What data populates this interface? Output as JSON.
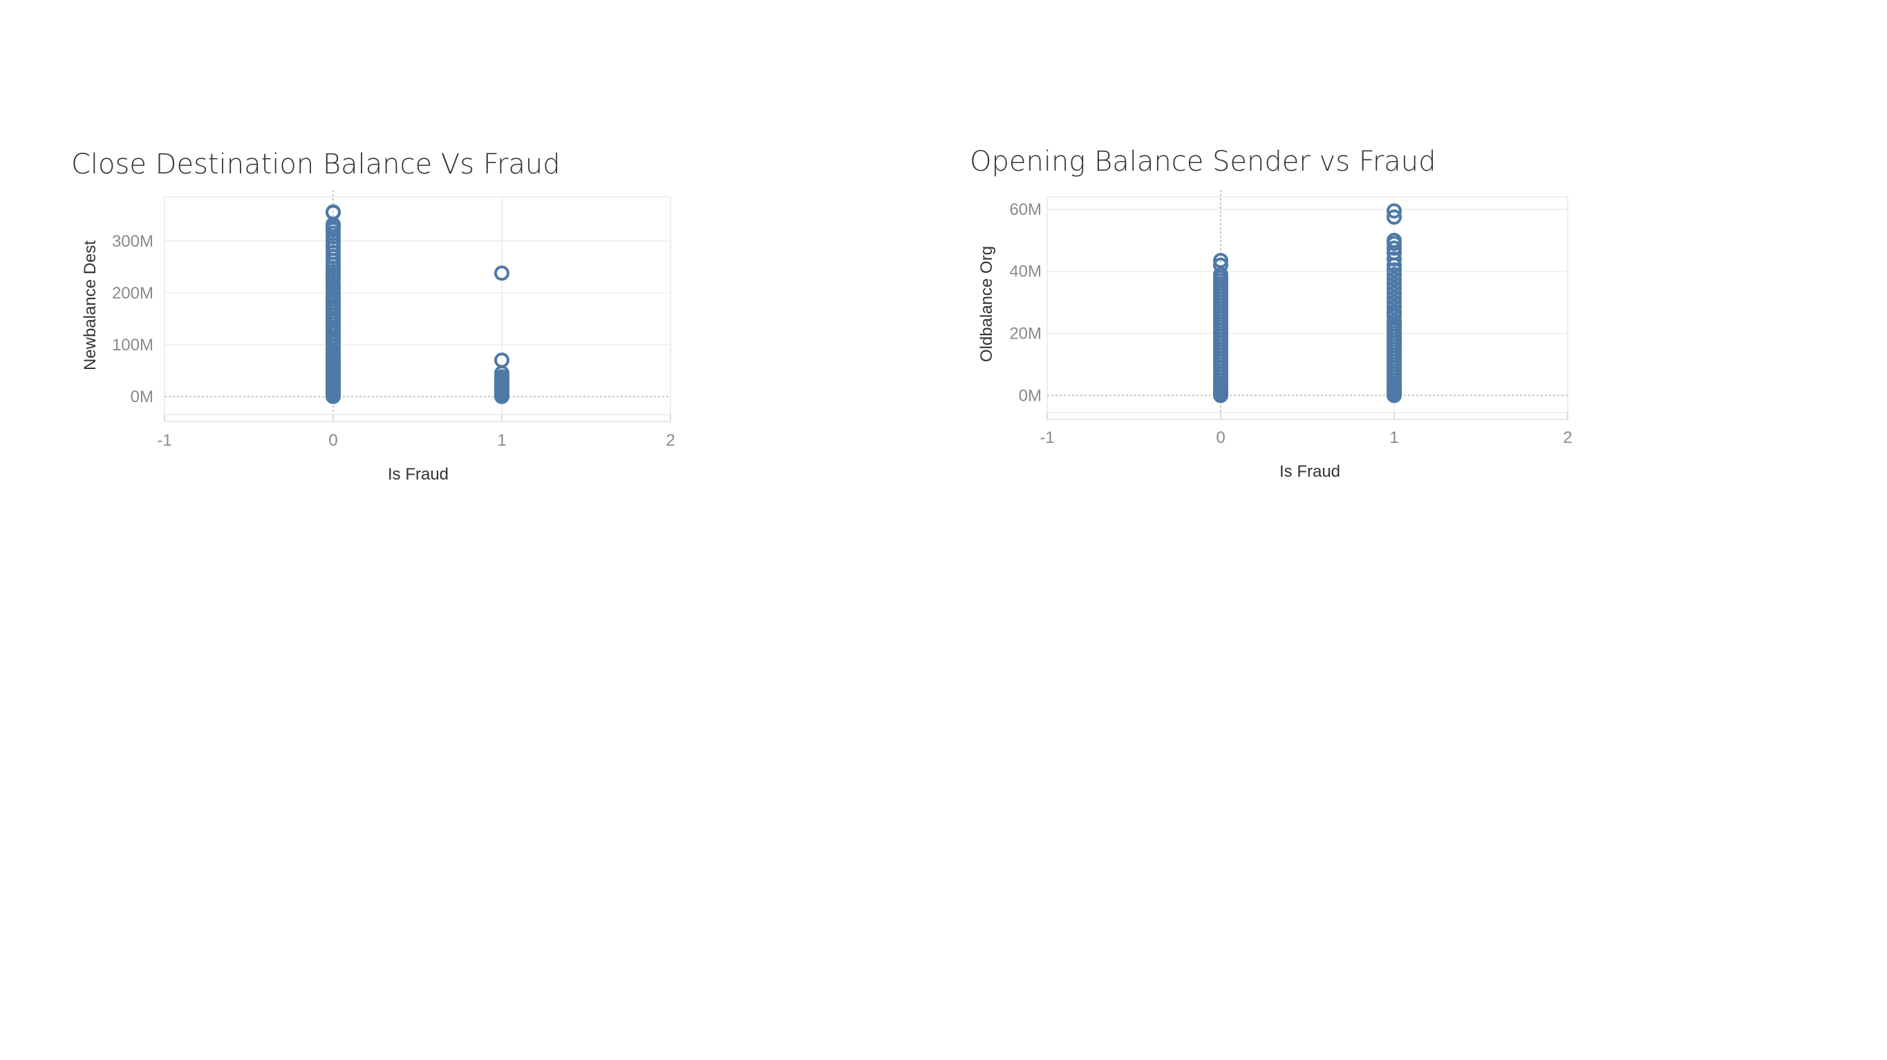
{
  "colors": {
    "point": "#4e79a7",
    "grid": "#ececec",
    "zero_line": "#b5b5b5",
    "tick_text": "#8a8a8a",
    "title_text": "#333333"
  },
  "chart_data": [
    {
      "type": "scatter",
      "title": "Close Destination Balance Vs Fraud",
      "xlabel": "Is Fraud",
      "ylabel": "Newbalance Dest",
      "xlim": [
        -1,
        2
      ],
      "ylim": [
        -35,
        385
      ],
      "x_ticks": [
        -1,
        0,
        1,
        2
      ],
      "x_tick_labels": [
        "-1",
        "0",
        "1",
        "2"
      ],
      "y_ticks": [
        0,
        100,
        200,
        300
      ],
      "y_tick_labels": [
        "0M",
        "100M",
        "200M",
        "300M"
      ],
      "y_unit": "M",
      "grid": true,
      "marker": "open-circle",
      "series": [
        {
          "x": [
            0,
            0,
            0,
            0,
            0,
            0,
            0,
            0,
            0,
            0,
            0,
            0,
            0,
            0,
            0,
            0,
            0,
            0,
            0,
            0,
            0,
            0,
            0,
            0,
            0,
            0,
            0,
            0,
            0,
            0,
            0,
            0,
            0,
            0,
            0,
            0,
            0,
            0,
            0,
            0,
            0,
            0,
            0,
            0,
            0,
            0,
            0,
            0,
            0,
            0,
            0,
            0,
            0,
            0,
            0,
            0,
            0,
            0,
            0,
            0,
            0,
            0,
            0,
            0,
            0,
            0,
            0,
            0,
            0,
            0,
            0,
            0,
            0,
            0,
            0,
            0,
            0,
            0,
            1,
            1,
            1,
            1,
            1,
            1,
            1,
            1,
            1,
            1,
            1,
            1,
            1,
            1,
            1,
            1,
            1,
            1
          ],
          "y": [
            356,
            355,
            332,
            327,
            322,
            315,
            308,
            300,
            293,
            286,
            278,
            270,
            262,
            255,
            248,
            241,
            234,
            227,
            220,
            213,
            206,
            199,
            193,
            187,
            181,
            175,
            169,
            163,
            157,
            151,
            145,
            139,
            133,
            127,
            121,
            115,
            109,
            103,
            97,
            91,
            85,
            80,
            75,
            70,
            65,
            60,
            55,
            50,
            46,
            42,
            38,
            34,
            30,
            27,
            24,
            21,
            18,
            15,
            12,
            10,
            8,
            6,
            4,
            2,
            1,
            0,
            90,
            110,
            130,
            150,
            170,
            190,
            210,
            230,
            60,
            40,
            20,
            5,
            238,
            70,
            45,
            38,
            33,
            29,
            25,
            21,
            18,
            15,
            12,
            9,
            7,
            5,
            3,
            2,
            1,
            0
          ]
        }
      ]
    },
    {
      "type": "scatter",
      "title": "Opening Balance Sender vs Fraud",
      "xlabel": "Is Fraud",
      "ylabel": "Oldbalance Org",
      "xlim": [
        -1,
        2
      ],
      "ylim": [
        -5.5,
        64
      ],
      "x_ticks": [
        -1,
        0,
        1,
        2
      ],
      "x_tick_labels": [
        "-1",
        "0",
        "1",
        "2"
      ],
      "y_ticks": [
        0,
        20,
        40,
        60
      ],
      "y_tick_labels": [
        "0M",
        "20M",
        "40M",
        "60M"
      ],
      "y_unit": "M",
      "grid": true,
      "marker": "open-circle",
      "series": [
        {
          "x": [
            0,
            0,
            0,
            0,
            0,
            0,
            0,
            0,
            0,
            0,
            0,
            0,
            0,
            0,
            0,
            0,
            0,
            0,
            0,
            0,
            0,
            0,
            0,
            0,
            0,
            0,
            0,
            0,
            0,
            0,
            0,
            0,
            0,
            0,
            0,
            0,
            0,
            0,
            0,
            0,
            0,
            0,
            0,
            0,
            0,
            0,
            0,
            1,
            1,
            1,
            1,
            1,
            1,
            1,
            1,
            1,
            1,
            1,
            1,
            1,
            1,
            1,
            1,
            1,
            1,
            1,
            1,
            1,
            1,
            1,
            1,
            1,
            1,
            1,
            1,
            1,
            1,
            1,
            1,
            1,
            1,
            1,
            1,
            1,
            1,
            1,
            1,
            1,
            1,
            1,
            1,
            1,
            1,
            1,
            1,
            1,
            1
          ],
          "y": [
            43.5,
            42,
            39,
            38,
            37,
            36,
            35,
            34,
            33,
            32,
            31,
            30,
            29,
            28,
            27,
            26,
            25,
            24,
            23,
            22,
            21,
            20,
            19,
            18,
            17,
            16,
            15,
            14,
            13,
            12,
            11,
            10,
            9,
            8,
            7,
            6,
            5,
            4,
            3.2,
            2.5,
            1.8,
            1.2,
            0.8,
            0.4,
            0.2,
            0.1,
            0,
            59.5,
            57.5,
            50,
            49,
            47.5,
            46,
            44,
            42,
            40.5,
            39,
            37.5,
            36,
            34.5,
            33,
            31.5,
            30,
            28.5,
            27,
            25.5,
            24,
            23,
            22,
            21,
            20,
            19,
            18,
            17,
            16,
            15,
            14,
            13,
            12,
            11,
            10,
            9,
            8,
            7,
            6,
            5,
            4,
            3.2,
            2.5,
            1.8,
            1.2,
            0.8,
            0.4,
            0.2,
            0.1,
            0,
            26.5
          ]
        }
      ]
    }
  ]
}
